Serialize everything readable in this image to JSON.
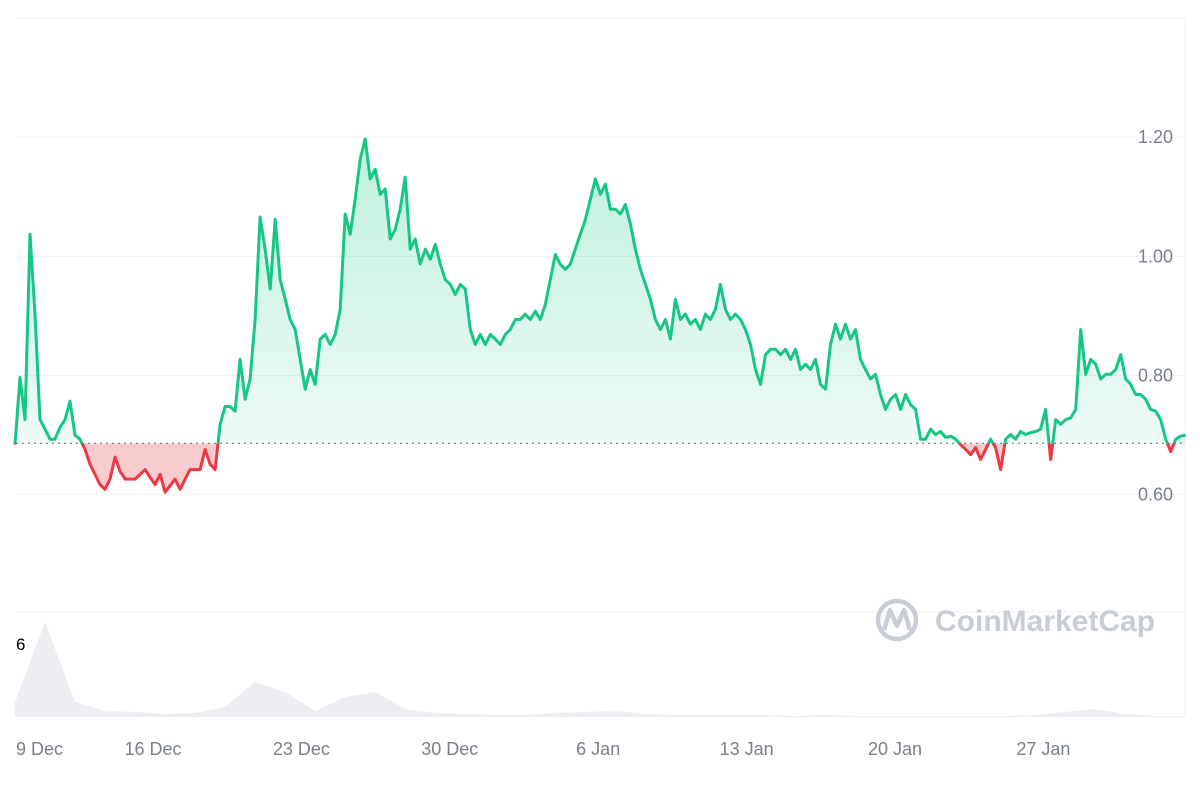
{
  "chart_data": {
    "type": "area",
    "title": "",
    "xlabel": "",
    "ylabel": "",
    "ylim": [
      0.403,
      1.4
    ],
    "baseline": 0.686,
    "grid": true,
    "legend": "none",
    "watermark": "CoinMarketCap",
    "y_ticks": [
      {
        "value": 1.2,
        "label": "1.20"
      },
      {
        "value": 1.0,
        "label": "1.00"
      },
      {
        "value": 0.8,
        "label": "0.80"
      },
      {
        "value": 0.6,
        "label": "0.60"
      }
    ],
    "x_ticks": [
      {
        "day": 0,
        "label": "9 Dec"
      },
      {
        "day": 7,
        "label": "16 Dec"
      },
      {
        "day": 14,
        "label": "23 Dec"
      },
      {
        "day": 21,
        "label": "30 Dec"
      },
      {
        "day": 28,
        "label": "6 Jan"
      },
      {
        "day": 35,
        "label": "13 Jan"
      },
      {
        "day": 42,
        "label": "20 Jan"
      },
      {
        "day": 49,
        "label": "27 Jan"
      }
    ],
    "x_start_day": 0.49,
    "x_step_days": 0.236,
    "x_end_day": 55.68,
    "colors": {
      "up": "#16c784",
      "down": "#ea3943",
      "up_fill": "#16c784",
      "down_fill": "#f5b5b9",
      "grid": "#eff1f4",
      "volume": "#eceef2"
    },
    "price": [
      0.684,
      0.797,
      0.726,
      1.037,
      0.903,
      0.726,
      0.71,
      0.693,
      0.693,
      0.713,
      0.726,
      0.757,
      0.7,
      0.693,
      0.676,
      0.651,
      0.634,
      0.617,
      0.609,
      0.626,
      0.663,
      0.639,
      0.626,
      0.626,
      0.626,
      0.634,
      0.642,
      0.629,
      0.617,
      0.634,
      0.604,
      0.615,
      0.626,
      0.609,
      0.626,
      0.642,
      0.642,
      0.642,
      0.676,
      0.651,
      0.642,
      0.718,
      0.748,
      0.748,
      0.74,
      0.827,
      0.76,
      0.794,
      0.894,
      1.066,
      1.012,
      0.945,
      1.062,
      0.961,
      0.928,
      0.894,
      0.877,
      0.827,
      0.777,
      0.81,
      0.785,
      0.861,
      0.869,
      0.852,
      0.869,
      0.911,
      1.071,
      1.037,
      1.096,
      1.163,
      1.197,
      1.13,
      1.146,
      1.104,
      1.113,
      1.029,
      1.045,
      1.079,
      1.133,
      1.012,
      1.029,
      0.987,
      1.012,
      0.995,
      1.02,
      0.987,
      0.961,
      0.953,
      0.936,
      0.953,
      0.945,
      0.877,
      0.852,
      0.869,
      0.852,
      0.869,
      0.861,
      0.852,
      0.869,
      0.877,
      0.894,
      0.894,
      0.903,
      0.894,
      0.908,
      0.894,
      0.919,
      0.961,
      1.003,
      0.987,
      0.978,
      0.987,
      1.012,
      1.037,
      1.062,
      1.096,
      1.13,
      1.104,
      1.121,
      1.079,
      1.079,
      1.071,
      1.087,
      1.054,
      1.012,
      0.978,
      0.953,
      0.928,
      0.894,
      0.877,
      0.894,
      0.861,
      0.928,
      0.894,
      0.903,
      0.886,
      0.894,
      0.877,
      0.903,
      0.894,
      0.911,
      0.953,
      0.911,
      0.894,
      0.903,
      0.894,
      0.877,
      0.852,
      0.81,
      0.785,
      0.835,
      0.844,
      0.844,
      0.835,
      0.844,
      0.827,
      0.844,
      0.81,
      0.819,
      0.81,
      0.827,
      0.785,
      0.777,
      0.852,
      0.886,
      0.861,
      0.886,
      0.861,
      0.877,
      0.827,
      0.81,
      0.794,
      0.802,
      0.768,
      0.743,
      0.76,
      0.768,
      0.743,
      0.768,
      0.751,
      0.743,
      0.693,
      0.693,
      0.71,
      0.701,
      0.706,
      0.696,
      0.698,
      0.693,
      0.684,
      0.676,
      0.667,
      0.679,
      0.659,
      0.676,
      0.693,
      0.679,
      0.642,
      0.693,
      0.701,
      0.693,
      0.706,
      0.701,
      0.704,
      0.706,
      0.71,
      0.743,
      0.659,
      0.726,
      0.718,
      0.726,
      0.729,
      0.743,
      0.877,
      0.802,
      0.827,
      0.819,
      0.794,
      0.802,
      0.802,
      0.81,
      0.835,
      0.794,
      0.785,
      0.768,
      0.768,
      0.76,
      0.743,
      0.74,
      0.726,
      0.693,
      0.672,
      0.693,
      0.698,
      0.7
    ],
    "volume": {
      "axis_label": "6",
      "step_days": 1.415,
      "values": [
        0.15,
        0.95,
        0.15,
        0.06,
        0.05,
        0.03,
        0.04,
        0.1,
        0.35,
        0.25,
        0.06,
        0.2,
        0.25,
        0.08,
        0.04,
        0.03,
        0.02,
        0.02,
        0.04,
        0.05,
        0.06,
        0.03,
        0.02,
        0.02,
        0.02,
        0.02,
        0.01,
        0.02,
        0.01,
        0.01,
        0.01,
        0.01,
        0.01,
        0.01,
        0.02,
        0.05,
        0.08,
        0.03,
        0.01,
        0.01
      ]
    }
  }
}
